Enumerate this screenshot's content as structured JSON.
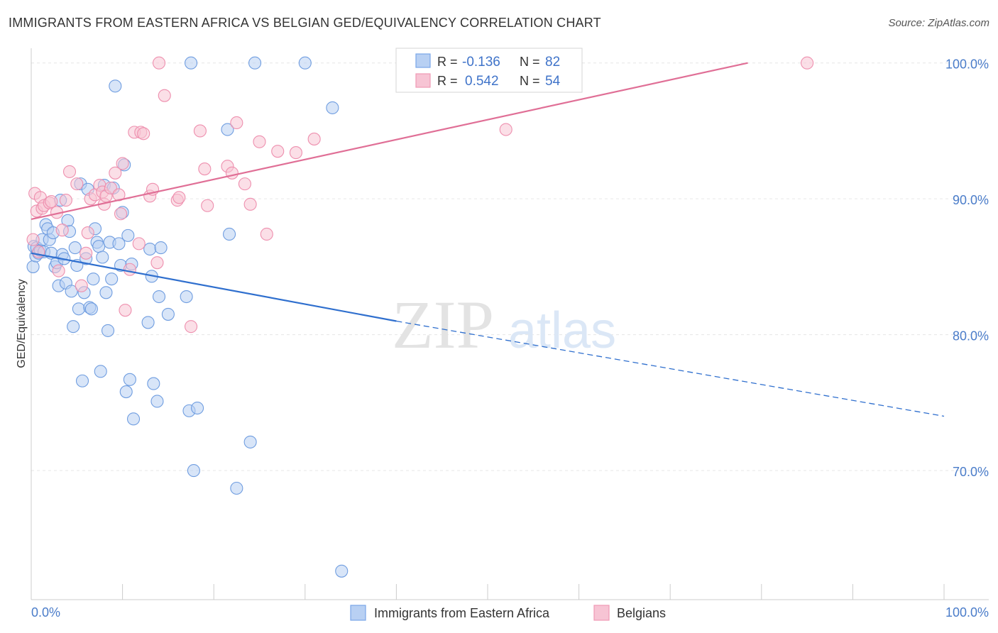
{
  "header": {
    "title": "IMMIGRANTS FROM EASTERN AFRICA VS BELGIAN GED/EQUIVALENCY CORRELATION CHART",
    "source": "Source: ZipAtlas.com"
  },
  "watermark": {
    "zip": "ZIP",
    "atlas": "atlas"
  },
  "legend_top": {
    "r_label": "R =",
    "n_label": "N =",
    "rows": [
      {
        "r": "-0.136",
        "n": "82",
        "color": "#7aa6e8"
      },
      {
        "r": "0.542",
        "n": "54",
        "color": "#ef9ab5"
      }
    ]
  },
  "chart_data": {
    "type": "scatter",
    "title": "IMMIGRANTS FROM EASTERN AFRICA VS BELGIAN GED/EQUIVALENCY CORRELATION CHART",
    "xlabel": "",
    "ylabel": "GED/Equivalency",
    "xlim": [
      0,
      100
    ],
    "ylim": [
      60.5,
      101.5
    ],
    "x_tick_labels": [
      "0.0%",
      "100.0%"
    ],
    "y_ticks": [
      100,
      90,
      80,
      70
    ],
    "y_tick_labels": [
      "100.0%",
      "90.0%",
      "80.0%",
      "70.0%"
    ],
    "grid": true,
    "legend_position": "bottom",
    "series": [
      {
        "name": "Immigrants from Eastern Africa",
        "color": "#6f9de0",
        "fill": "#b8d0f3",
        "r": -0.136,
        "n": 82,
        "trend": {
          "x": [
            0,
            40,
            100
          ],
          "y": [
            86.0,
            81.0,
            74.0
          ],
          "solid_until": 40
        },
        "points": [
          [
            0.2,
            85.0
          ],
          [
            0.3,
            86.5
          ],
          [
            0.5,
            85.8
          ],
          [
            0.6,
            86.4
          ],
          [
            0.8,
            86.0
          ],
          [
            1.0,
            86.2
          ],
          [
            1.2,
            87.0
          ],
          [
            1.4,
            86.1
          ],
          [
            1.6,
            88.1
          ],
          [
            1.8,
            87.8
          ],
          [
            2.0,
            87.0
          ],
          [
            2.2,
            86.0
          ],
          [
            2.4,
            87.5
          ],
          [
            2.6,
            85.0
          ],
          [
            2.8,
            85.3
          ],
          [
            3.0,
            83.6
          ],
          [
            3.2,
            89.9
          ],
          [
            3.4,
            85.9
          ],
          [
            3.6,
            85.6
          ],
          [
            3.8,
            83.8
          ],
          [
            4.0,
            88.4
          ],
          [
            4.2,
            87.6
          ],
          [
            4.4,
            83.2
          ],
          [
            4.6,
            80.6
          ],
          [
            4.8,
            86.4
          ],
          [
            5.0,
            85.1
          ],
          [
            5.2,
            81.9
          ],
          [
            5.4,
            91.1
          ],
          [
            5.6,
            76.6
          ],
          [
            5.8,
            83.1
          ],
          [
            6.0,
            85.6
          ],
          [
            6.2,
            90.7
          ],
          [
            6.4,
            82.0
          ],
          [
            6.6,
            81.9
          ],
          [
            6.8,
            84.1
          ],
          [
            7.0,
            87.8
          ],
          [
            7.2,
            86.8
          ],
          [
            7.4,
            86.5
          ],
          [
            7.6,
            77.3
          ],
          [
            7.8,
            85.7
          ],
          [
            8.0,
            91.0
          ],
          [
            8.2,
            83.1
          ],
          [
            8.4,
            80.3
          ],
          [
            8.6,
            86.8
          ],
          [
            8.8,
            84.1
          ],
          [
            9.0,
            90.8
          ],
          [
            9.2,
            98.3
          ],
          [
            9.6,
            86.7
          ],
          [
            9.8,
            85.1
          ],
          [
            10.0,
            89.0
          ],
          [
            10.2,
            92.5
          ],
          [
            10.4,
            75.8
          ],
          [
            10.6,
            87.3
          ],
          [
            10.8,
            76.7
          ],
          [
            11.0,
            85.2
          ],
          [
            11.2,
            73.8
          ],
          [
            12.8,
            80.9
          ],
          [
            13.0,
            86.3
          ],
          [
            13.2,
            84.3
          ],
          [
            13.4,
            76.4
          ],
          [
            13.8,
            75.1
          ],
          [
            14.0,
            82.8
          ],
          [
            14.2,
            86.4
          ],
          [
            15.0,
            81.5
          ],
          [
            17.0,
            82.8
          ],
          [
            17.3,
            74.4
          ],
          [
            17.5,
            100.0
          ],
          [
            17.8,
            70.0
          ],
          [
            18.2,
            74.6
          ],
          [
            21.5,
            95.1
          ],
          [
            21.7,
            87.4
          ],
          [
            22.5,
            68.7
          ],
          [
            24.0,
            72.1
          ],
          [
            24.5,
            100.0
          ],
          [
            30.0,
            100.0
          ],
          [
            33.0,
            96.7
          ],
          [
            34.0,
            62.6
          ]
        ]
      },
      {
        "name": "Belgians",
        "color": "#ee8fae",
        "fill": "#f7c4d4",
        "r": 0.542,
        "n": 54,
        "trend": {
          "x": [
            0,
            78.5
          ],
          "y": [
            88.5,
            100.0
          ]
        },
        "points": [
          [
            0.2,
            87.0
          ],
          [
            0.4,
            90.4
          ],
          [
            0.6,
            89.1
          ],
          [
            0.8,
            86.1
          ],
          [
            1.0,
            90.1
          ],
          [
            1.2,
            89.3
          ],
          [
            1.4,
            89.5
          ],
          [
            2.0,
            89.7
          ],
          [
            2.2,
            89.8
          ],
          [
            2.8,
            89.0
          ],
          [
            3.0,
            84.7
          ],
          [
            3.4,
            87.7
          ],
          [
            3.8,
            89.9
          ],
          [
            4.2,
            92.0
          ],
          [
            5.0,
            91.1
          ],
          [
            5.5,
            83.6
          ],
          [
            6.0,
            86.0
          ],
          [
            6.2,
            87.5
          ],
          [
            6.5,
            90.0
          ],
          [
            7.0,
            90.3
          ],
          [
            7.5,
            91.0
          ],
          [
            7.8,
            90.5
          ],
          [
            8.0,
            89.6
          ],
          [
            8.2,
            90.2
          ],
          [
            8.7,
            90.8
          ],
          [
            9.2,
            91.9
          ],
          [
            9.6,
            90.3
          ],
          [
            9.8,
            88.9
          ],
          [
            10.0,
            92.6
          ],
          [
            10.3,
            81.8
          ],
          [
            10.8,
            84.8
          ],
          [
            11.3,
            94.9
          ],
          [
            11.8,
            86.7
          ],
          [
            12.0,
            94.9
          ],
          [
            12.3,
            94.8
          ],
          [
            13.0,
            90.2
          ],
          [
            13.3,
            90.7
          ],
          [
            13.8,
            85.3
          ],
          [
            14.0,
            100.0
          ],
          [
            14.6,
            97.6
          ],
          [
            16.0,
            89.9
          ],
          [
            16.2,
            90.1
          ],
          [
            17.5,
            80.6
          ],
          [
            18.5,
            95.0
          ],
          [
            19.0,
            92.2
          ],
          [
            19.3,
            89.5
          ],
          [
            21.5,
            92.4
          ],
          [
            22.0,
            91.9
          ],
          [
            22.5,
            95.6
          ],
          [
            23.4,
            91.1
          ],
          [
            24.0,
            89.6
          ],
          [
            25.0,
            94.2
          ],
          [
            25.8,
            87.4
          ],
          [
            27.0,
            93.5
          ],
          [
            29.0,
            93.4
          ],
          [
            31.0,
            94.4
          ],
          [
            52.0,
            95.1
          ],
          [
            85.0,
            100.0
          ]
        ]
      }
    ]
  }
}
